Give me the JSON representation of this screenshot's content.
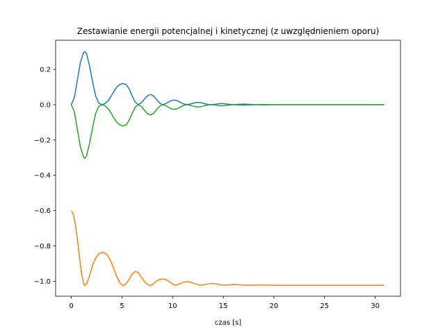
{
  "chart_data": {
    "type": "line",
    "title": "Zestawianie energii potencjalnej i kinetycznej (z uwzględnieniem oporu)",
    "xlabel": "czas [s]",
    "ylabel": "",
    "xlim": [
      -1.55,
      32.5
    ],
    "ylim": [
      -1.085,
      0.365
    ],
    "xticks": [
      0,
      5,
      10,
      15,
      20,
      25,
      30
    ],
    "yticks": [
      0.2,
      0.0,
      -0.2,
      -0.4,
      -0.6,
      -0.8,
      -1.0
    ],
    "ytick_labels": [
      "0.2",
      "0.0",
      "−0.2",
      "−0.4",
      "−0.6",
      "−0.8",
      "−1.0"
    ],
    "grid": false,
    "legend": "none",
    "series": [
      {
        "color": "#1f77b4",
        "points": [
          [
            0,
            0
          ],
          [
            0.3,
            0.04
          ],
          [
            0.6,
            0.14
          ],
          [
            0.9,
            0.24
          ],
          [
            1.2,
            0.295
          ],
          [
            1.35,
            0.3
          ],
          [
            1.5,
            0.29
          ],
          [
            1.8,
            0.22
          ],
          [
            2.1,
            0.13
          ],
          [
            2.4,
            0.05
          ],
          [
            2.7,
            0.01
          ],
          [
            3.0,
            0.0
          ],
          [
            3.3,
            0.005
          ],
          [
            3.6,
            0.02
          ],
          [
            3.9,
            0.045
          ],
          [
            4.2,
            0.075
          ],
          [
            4.5,
            0.1
          ],
          [
            4.8,
            0.115
          ],
          [
            5.1,
            0.12
          ],
          [
            5.4,
            0.115
          ],
          [
            5.7,
            0.09
          ],
          [
            6.0,
            0.05
          ],
          [
            6.3,
            0.015
          ],
          [
            6.6,
            0.0
          ],
          [
            6.9,
            0.01
          ],
          [
            7.2,
            0.03
          ],
          [
            7.5,
            0.05
          ],
          [
            7.8,
            0.058
          ],
          [
            8.1,
            0.05
          ],
          [
            8.4,
            0.03
          ],
          [
            8.7,
            0.01
          ],
          [
            9.0,
            0.0
          ],
          [
            9.3,
            0.005
          ],
          [
            9.6,
            0.015
          ],
          [
            9.9,
            0.024
          ],
          [
            10.2,
            0.026
          ],
          [
            10.5,
            0.022
          ],
          [
            10.8,
            0.012
          ],
          [
            11.1,
            0.004
          ],
          [
            11.4,
            0.0
          ],
          [
            11.7,
            0.003
          ],
          [
            12.0,
            0.008
          ],
          [
            12.3,
            0.012
          ],
          [
            12.6,
            0.013
          ],
          [
            12.9,
            0.01
          ],
          [
            13.2,
            0.005
          ],
          [
            13.5,
            0.001
          ],
          [
            13.8,
            0.0
          ],
          [
            14.1,
            0.001
          ],
          [
            14.4,
            0.004
          ],
          [
            14.7,
            0.006
          ],
          [
            15.0,
            0.006
          ],
          [
            15.3,
            0.004
          ],
          [
            15.6,
            0.002
          ],
          [
            16.0,
            0.0
          ],
          [
            16.5,
            0.002
          ],
          [
            17.0,
            0.003
          ],
          [
            17.5,
            0.002
          ],
          [
            18.0,
            0.0
          ],
          [
            19.0,
            0.001
          ],
          [
            20.0,
            0.0
          ],
          [
            22.0,
            0.0
          ],
          [
            25.0,
            0.0
          ],
          [
            28.0,
            0.0
          ],
          [
            30.9,
            0.0
          ]
        ]
      },
      {
        "color": "#ff7f0e",
        "points": [
          [
            0,
            -0.6
          ],
          [
            0.2,
            -0.62
          ],
          [
            0.4,
            -0.68
          ],
          [
            0.6,
            -0.76
          ],
          [
            0.8,
            -0.86
          ],
          [
            1.0,
            -0.95
          ],
          [
            1.2,
            -1.01
          ],
          [
            1.35,
            -1.025
          ],
          [
            1.5,
            -1.015
          ],
          [
            1.8,
            -0.97
          ],
          [
            2.1,
            -0.91
          ],
          [
            2.4,
            -0.87
          ],
          [
            2.7,
            -0.845
          ],
          [
            3.0,
            -0.837
          ],
          [
            3.3,
            -0.84
          ],
          [
            3.6,
            -0.855
          ],
          [
            3.9,
            -0.885
          ],
          [
            4.2,
            -0.93
          ],
          [
            4.5,
            -0.975
          ],
          [
            4.8,
            -1.01
          ],
          [
            5.1,
            -1.025
          ],
          [
            5.4,
            -1.015
          ],
          [
            5.7,
            -0.99
          ],
          [
            6.0,
            -0.96
          ],
          [
            6.3,
            -0.945
          ],
          [
            6.6,
            -0.95
          ],
          [
            6.9,
            -0.975
          ],
          [
            7.2,
            -1.0
          ],
          [
            7.5,
            -1.018
          ],
          [
            7.8,
            -1.025
          ],
          [
            8.1,
            -1.015
          ],
          [
            8.4,
            -1.0
          ],
          [
            8.7,
            -0.99
          ],
          [
            9.0,
            -0.987
          ],
          [
            9.3,
            -0.99
          ],
          [
            9.6,
            -1.0
          ],
          [
            9.9,
            -1.012
          ],
          [
            10.2,
            -1.022
          ],
          [
            10.5,
            -1.02
          ],
          [
            10.8,
            -1.012
          ],
          [
            11.1,
            -1.006
          ],
          [
            11.4,
            -1.003
          ],
          [
            11.7,
            -1.005
          ],
          [
            12.0,
            -1.01
          ],
          [
            12.3,
            -1.016
          ],
          [
            12.6,
            -1.021
          ],
          [
            12.9,
            -1.022
          ],
          [
            13.2,
            -1.019
          ],
          [
            13.5,
            -1.015
          ],
          [
            13.8,
            -1.013
          ],
          [
            14.1,
            -1.013
          ],
          [
            14.4,
            -1.016
          ],
          [
            14.7,
            -1.02
          ],
          [
            15.0,
            -1.022
          ],
          [
            15.5,
            -1.021
          ],
          [
            16.0,
            -1.018
          ],
          [
            16.5,
            -1.019
          ],
          [
            17.0,
            -1.022
          ],
          [
            17.5,
            -1.023
          ],
          [
            18.0,
            -1.022
          ],
          [
            19.0,
            -1.022
          ],
          [
            20.0,
            -1.023
          ],
          [
            22.0,
            -1.023
          ],
          [
            25.0,
            -1.023
          ],
          [
            28.0,
            -1.023
          ],
          [
            30.9,
            -1.023
          ]
        ]
      },
      {
        "color": "#2ca02c",
        "points": [
          [
            0,
            0
          ],
          [
            0.3,
            -0.04
          ],
          [
            0.6,
            -0.14
          ],
          [
            0.9,
            -0.24
          ],
          [
            1.2,
            -0.295
          ],
          [
            1.35,
            -0.305
          ],
          [
            1.5,
            -0.29
          ],
          [
            1.8,
            -0.22
          ],
          [
            2.1,
            -0.13
          ],
          [
            2.4,
            -0.05
          ],
          [
            2.7,
            -0.01
          ],
          [
            3.0,
            0.0
          ],
          [
            3.3,
            -0.005
          ],
          [
            3.6,
            -0.02
          ],
          [
            3.9,
            -0.045
          ],
          [
            4.2,
            -0.075
          ],
          [
            4.5,
            -0.1
          ],
          [
            4.8,
            -0.115
          ],
          [
            5.1,
            -0.12
          ],
          [
            5.4,
            -0.115
          ],
          [
            5.7,
            -0.09
          ],
          [
            6.0,
            -0.05
          ],
          [
            6.3,
            -0.015
          ],
          [
            6.6,
            0.0
          ],
          [
            6.9,
            -0.01
          ],
          [
            7.2,
            -0.03
          ],
          [
            7.5,
            -0.05
          ],
          [
            7.8,
            -0.058
          ],
          [
            8.1,
            -0.05
          ],
          [
            8.4,
            -0.03
          ],
          [
            8.7,
            -0.01
          ],
          [
            9.0,
            0.0
          ],
          [
            9.3,
            -0.005
          ],
          [
            9.6,
            -0.015
          ],
          [
            9.9,
            -0.024
          ],
          [
            10.2,
            -0.026
          ],
          [
            10.5,
            -0.022
          ],
          [
            10.8,
            -0.012
          ],
          [
            11.1,
            -0.004
          ],
          [
            11.4,
            0.0
          ],
          [
            11.7,
            -0.003
          ],
          [
            12.0,
            -0.008
          ],
          [
            12.3,
            -0.012
          ],
          [
            12.6,
            -0.013
          ],
          [
            12.9,
            -0.01
          ],
          [
            13.2,
            -0.005
          ],
          [
            13.5,
            -0.001
          ],
          [
            13.8,
            0.0
          ],
          [
            14.1,
            -0.001
          ],
          [
            14.4,
            -0.004
          ],
          [
            14.7,
            -0.006
          ],
          [
            15.0,
            -0.006
          ],
          [
            15.3,
            -0.004
          ],
          [
            15.6,
            -0.002
          ],
          [
            16.0,
            0.0
          ],
          [
            16.5,
            -0.002
          ],
          [
            17.0,
            -0.003
          ],
          [
            17.5,
            -0.002
          ],
          [
            18.0,
            0.0
          ],
          [
            19.0,
            -0.001
          ],
          [
            20.0,
            0.0
          ],
          [
            22.0,
            0.0
          ],
          [
            25.0,
            0.0
          ],
          [
            28.0,
            0.0
          ],
          [
            30.9,
            0.0
          ]
        ]
      }
    ]
  }
}
